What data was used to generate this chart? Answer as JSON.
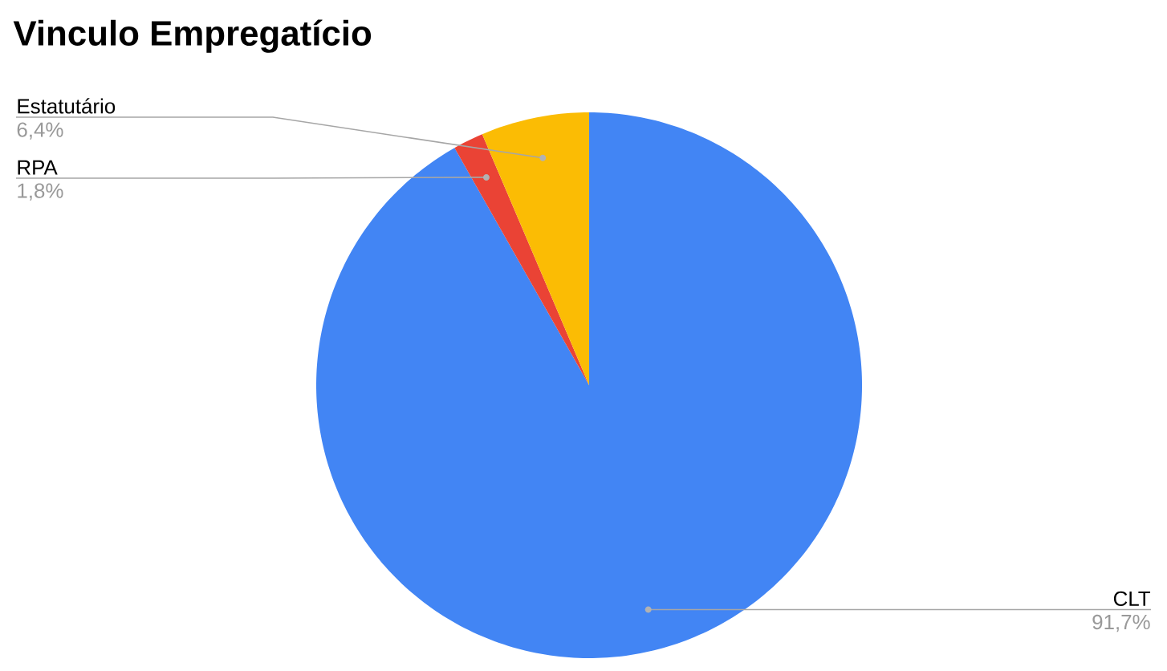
{
  "chart_data": {
    "type": "pie",
    "title": "Vinculo Empregatício",
    "categories": [
      "CLT",
      "RPA",
      "Estatutário"
    ],
    "values": [
      91.7,
      1.8,
      6.4
    ],
    "colors": [
      "#4285f4",
      "#ea4335",
      "#fbbc04"
    ],
    "value_labels": [
      "91,7%",
      "1,8%",
      "6,4%"
    ]
  }
}
